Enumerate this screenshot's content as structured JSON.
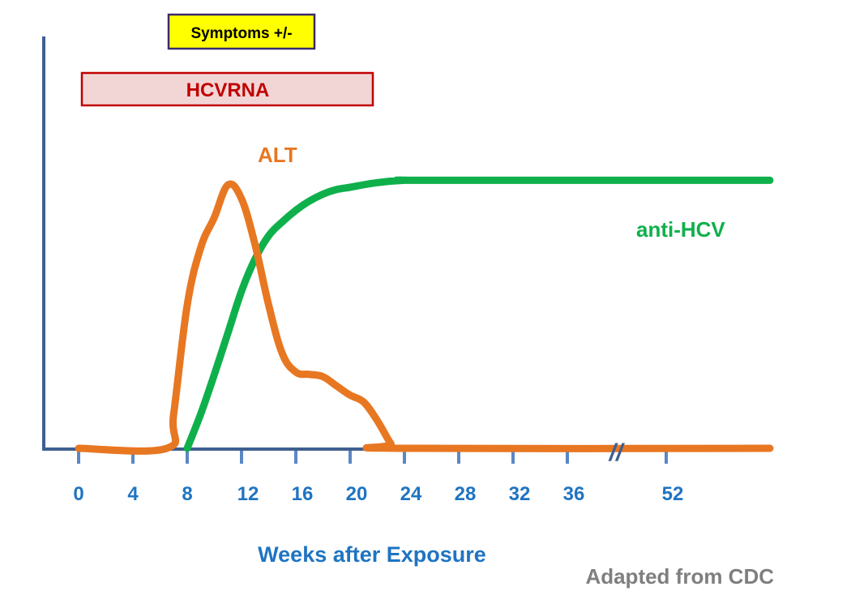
{
  "colors": {
    "axis": "#3f5f8f",
    "tick": "#5b87c5",
    "tick_label": "#1f74c2",
    "alt": "#e87722",
    "anti_hcv": "#0fb04b",
    "source": "#7f7f7f",
    "symptoms_fill": "#ffff00",
    "symptoms_border": "#3a2a6a",
    "hcvrna_fill": "#f2d6d6",
    "hcvrna_border": "#c00000",
    "hcvrna_text": "#c00000",
    "symptoms_text": "#000000"
  },
  "chart_data": {
    "type": "line",
    "xlabel": "Weeks after Exposure",
    "ylabel": "",
    "ticks": [
      0,
      4,
      8,
      12,
      16,
      20,
      24,
      28,
      32,
      36,
      52
    ],
    "tick_labels": [
      "0",
      "4",
      "8",
      "12",
      "16",
      "20",
      "24",
      "28",
      "32",
      "36",
      "52"
    ],
    "axis_break_marks": "//",
    "source": "Adapted from CDC",
    "boxes": [
      {
        "label": "Symptoms +/-",
        "start_week": 6.8,
        "end_week": 17.5
      },
      {
        "label": "HCVRNA",
        "start_week": 0,
        "end_week": 22
      }
    ],
    "series": [
      {
        "name": "ALT",
        "x": [
          0,
          6.5,
          7,
          8,
          9,
          10,
          11,
          12,
          13,
          14,
          15,
          16,
          17,
          18,
          19,
          20,
          21,
          22,
          23,
          23.5,
          52
        ],
        "y": [
          0,
          0,
          0.15,
          0.62,
          0.87,
          1.0,
          1.14,
          1.08,
          0.88,
          0.62,
          0.41,
          0.33,
          0.32,
          0.31,
          0.27,
          0.23,
          0.2,
          0.12,
          0.02,
          0,
          0
        ]
      },
      {
        "name": "anti-HCV",
        "x": [
          8,
          9,
          10,
          11,
          12,
          13,
          14,
          15,
          16,
          17,
          18,
          19,
          20,
          22,
          24,
          26,
          52
        ],
        "y": [
          0,
          0.15,
          0.32,
          0.5,
          0.68,
          0.82,
          0.92,
          0.98,
          1.03,
          1.07,
          1.1,
          1.12,
          1.13,
          1.15,
          1.16,
          1.16,
          1.16
        ]
      }
    ],
    "ylim": [
      0,
      1.3
    ],
    "grid": false,
    "legend": "none"
  }
}
